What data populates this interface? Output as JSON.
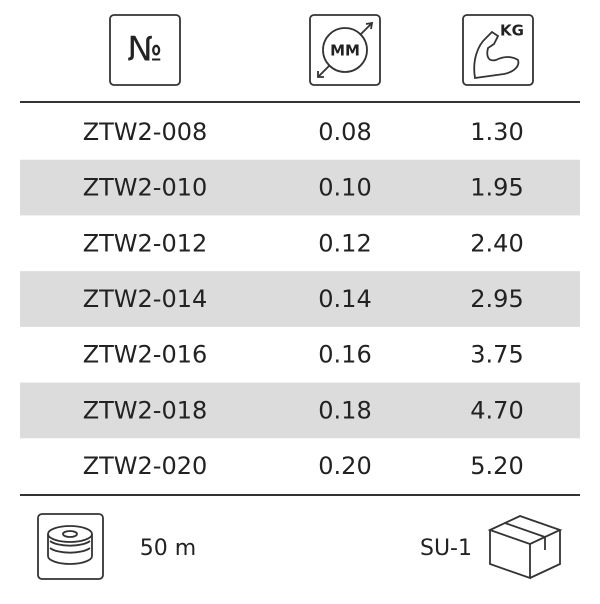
{
  "header": {
    "number": "№",
    "diameter": "MM",
    "strength": "KG"
  },
  "table": {
    "rows": [
      [
        "ZTW2-008",
        "0.08",
        "1.30"
      ],
      [
        "ZTW2-010",
        "0.10",
        "1.95"
      ],
      [
        "ZTW2-012",
        "0.12",
        "2.40"
      ],
      [
        "ZTW2-014",
        "0.14",
        "2.95"
      ],
      [
        "ZTW2-016",
        "0.16",
        "3.75"
      ],
      [
        "ZTW2-018",
        "0.18",
        "4.70"
      ],
      [
        "ZTW2-020",
        "0.20",
        "5.20"
      ]
    ]
  },
  "footer": {
    "length": "50 m",
    "package": "SU-1"
  }
}
